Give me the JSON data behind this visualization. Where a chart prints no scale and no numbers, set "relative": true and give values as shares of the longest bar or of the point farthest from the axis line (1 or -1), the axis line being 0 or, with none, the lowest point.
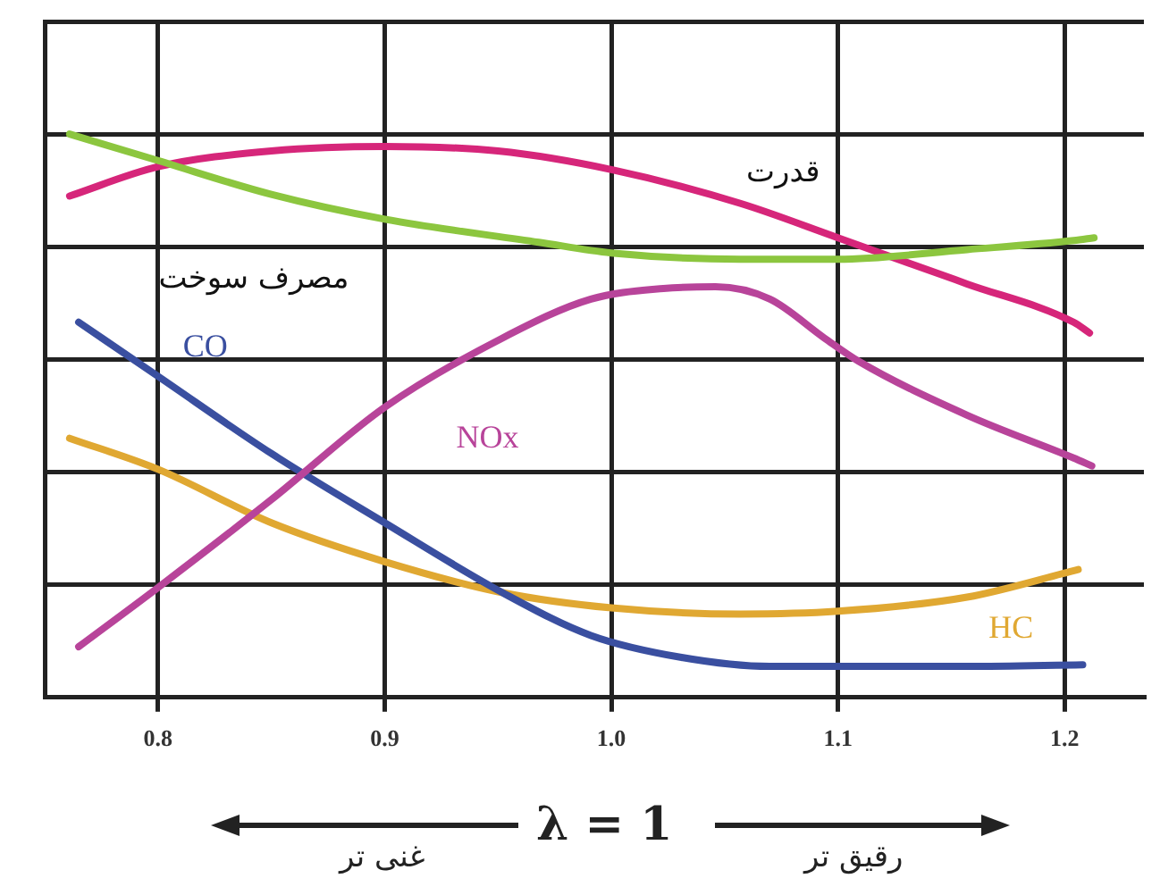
{
  "chart_data": {
    "type": "line",
    "relative": true,
    "xlabel": "λ = 1",
    "annotations": [
      "غنی تر",
      "رقیق تر"
    ],
    "xlim": [
      0.75,
      1.235
    ],
    "xticks": [
      0.8,
      0.9,
      {
        "value": 1,
        "label": "1.0"
      },
      1.1,
      1.2
    ],
    "grid": true,
    "legend": false,
    "marker": "none",
    "line_style": "solid",
    "series": [
      {
        "name": "مصرف سوخت",
        "color": "#8cc63f",
        "x": [
          0.761,
          0.8,
          0.85,
          0.9,
          0.968,
          1.0,
          1.057,
          1.1,
          1.157,
          1.204,
          1.213
        ],
        "values": [
          1.0,
          0.953,
          0.893,
          0.849,
          0.808,
          0.789,
          0.778,
          0.778,
          0.795,
          0.811,
          0.816
        ]
      },
      {
        "name": "قدرت",
        "color": "#d6267a",
        "x": [
          0.761,
          0.8,
          0.85,
          0.9,
          0.95,
          1.0,
          1.057,
          1.1,
          1.157,
          1.204,
          1.211
        ],
        "values": [
          0.89,
          0.942,
          0.97,
          0.978,
          0.97,
          0.937,
          0.877,
          0.816,
          0.734,
          0.666,
          0.647
        ]
      },
      {
        "name": "NOx",
        "color": "#b8449a",
        "x": [
          0.765,
          0.8,
          0.85,
          0.9,
          0.952,
          0.991,
          1.023,
          1.046,
          1.07,
          1.094,
          1.109,
          1.157,
          1.204,
          1.212
        ],
        "values": [
          0.09,
          0.195,
          0.351,
          0.515,
          0.638,
          0.707,
          0.726,
          0.729,
          0.707,
          0.638,
          0.597,
          0.501,
          0.425,
          0.411
        ]
      },
      {
        "name": "CO",
        "color": "#3a4fa0",
        "x": [
          0.765,
          0.8,
          0.85,
          0.9,
          0.952,
          0.991,
          1.031,
          1.07,
          1.1,
          1.157,
          1.208
        ],
        "values": [
          0.666,
          0.57,
          0.433,
          0.31,
          0.186,
          0.11,
          0.071,
          0.055,
          0.055,
          0.055,
          0.058
        ]
      },
      {
        "name": "HC",
        "color": "#e0a832",
        "x": [
          0.761,
          0.8,
          0.85,
          0.9,
          0.952,
          1.0,
          1.057,
          1.1,
          1.157,
          1.206
        ],
        "values": [
          0.46,
          0.405,
          0.31,
          0.241,
          0.186,
          0.159,
          0.148,
          0.153,
          0.178,
          0.227
        ]
      }
    ]
  }
}
